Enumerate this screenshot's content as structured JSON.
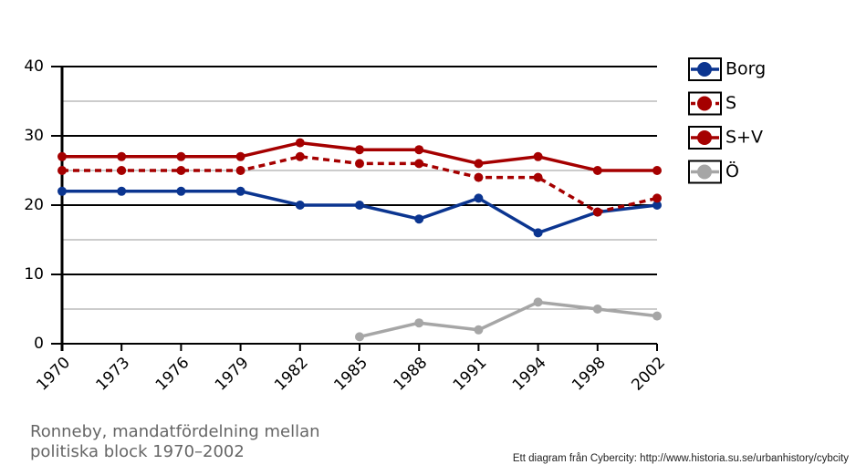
{
  "chart_data": {
    "type": "line",
    "title": "Ronneby, mandatfördelning mellan politiska block 1970–2002",
    "source": "Ett diagram från Cybercity: http://www.historia.su.se/urbanhistory/cybcity",
    "categories": [
      "1970",
      "1973",
      "1976",
      "1979",
      "1982",
      "1985",
      "1988",
      "1991",
      "1994",
      "1998",
      "2002"
    ],
    "series": [
      {
        "name": "Borg",
        "color": "#0b3590",
        "dash": false,
        "values": [
          22,
          22,
          22,
          22,
          20,
          20,
          18,
          21,
          16,
          19,
          20
        ]
      },
      {
        "name": "S",
        "color": "#a50000",
        "dash": true,
        "values": [
          25,
          25,
          25,
          25,
          27,
          26,
          26,
          24,
          24,
          19,
          21
        ]
      },
      {
        "name": "S+V",
        "color": "#a50000",
        "dash": false,
        "values": [
          27,
          27,
          27,
          27,
          29,
          28,
          28,
          26,
          27,
          25,
          25
        ]
      },
      {
        "name": "Ö",
        "color": "#a6a6a6",
        "dash": false,
        "values": [
          null,
          null,
          null,
          null,
          null,
          1,
          3,
          2,
          6,
          5,
          4
        ]
      }
    ],
    "ylim": [
      0,
      40
    ],
    "yticks": [
      0,
      10,
      20,
      30,
      40
    ],
    "minor_grid": [
      5,
      15,
      25,
      35
    ],
    "grid": true,
    "legend": "right"
  }
}
